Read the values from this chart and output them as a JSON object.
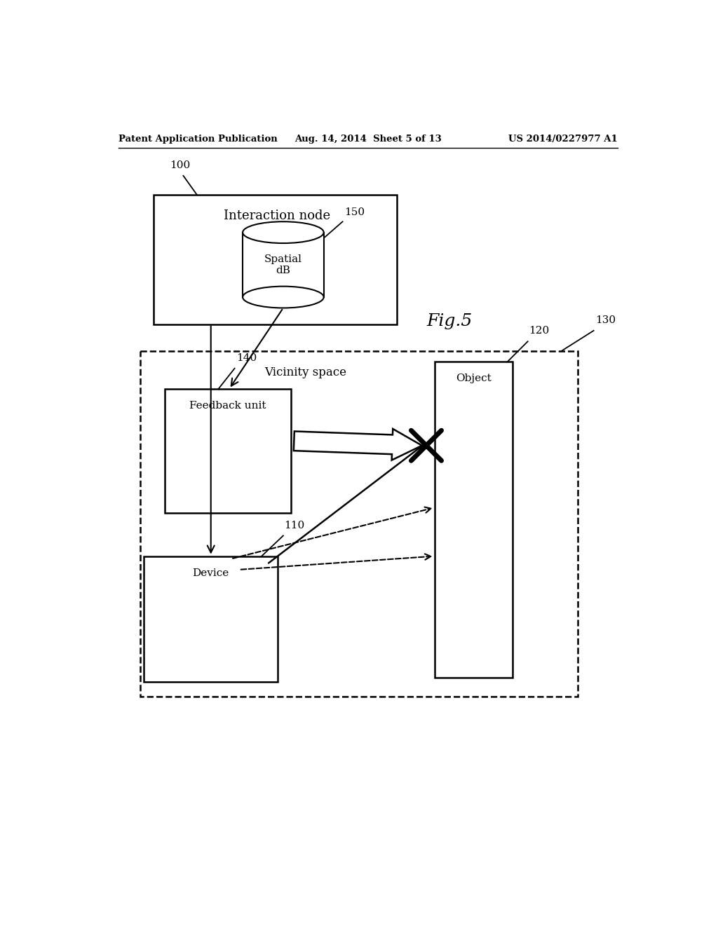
{
  "background_color": "#ffffff",
  "header_left": "Patent Application Publication",
  "header_center": "Aug. 14, 2014  Sheet 5 of 13",
  "header_right": "US 2014/0227977 A1",
  "fig_label": "Fig.5",
  "interaction_node_label": "Interaction node",
  "interaction_node_ref": "100",
  "spatial_db_label": "Spatial\ndB",
  "spatial_db_ref": "150",
  "vicinity_label": "Vicinity space",
  "vicinity_ref": "130",
  "feedback_label": "Feedback unit",
  "feedback_ref": "140",
  "object_label": "Object",
  "object_ref": "120",
  "device_label": "Device",
  "device_ref": "110"
}
